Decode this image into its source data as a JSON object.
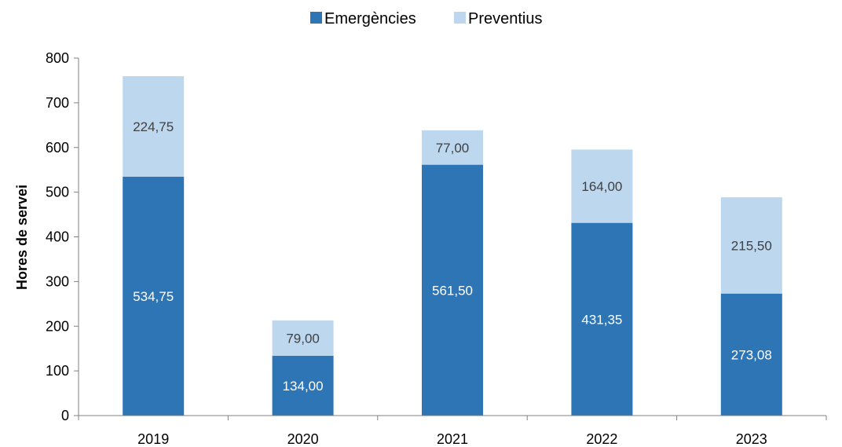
{
  "chart_data": {
    "type": "bar",
    "stacked": true,
    "categories": [
      "2019",
      "2020",
      "2021",
      "2022",
      "2023"
    ],
    "series": [
      {
        "name": "Emergències",
        "values": [
          534.75,
          134.0,
          561.5,
          431.35,
          273.08
        ],
        "labels": [
          "534,75",
          "134,00",
          "561,50",
          "431,35",
          "273,08"
        ],
        "color": "#2e75b6"
      },
      {
        "name": "Preventius",
        "values": [
          224.75,
          79.0,
          77.0,
          164.0,
          215.5
        ],
        "labels": [
          "224,75",
          "79,00",
          "77,00",
          "164,00",
          "215,50"
        ],
        "color": "#bdd7ee"
      }
    ],
    "ylabel": "Hores de servei",
    "xlabel": "",
    "ylim": [
      0,
      800
    ],
    "yticks": [
      0,
      100,
      200,
      300,
      400,
      500,
      600,
      700,
      800
    ],
    "legend_position": "top",
    "grid": false
  }
}
